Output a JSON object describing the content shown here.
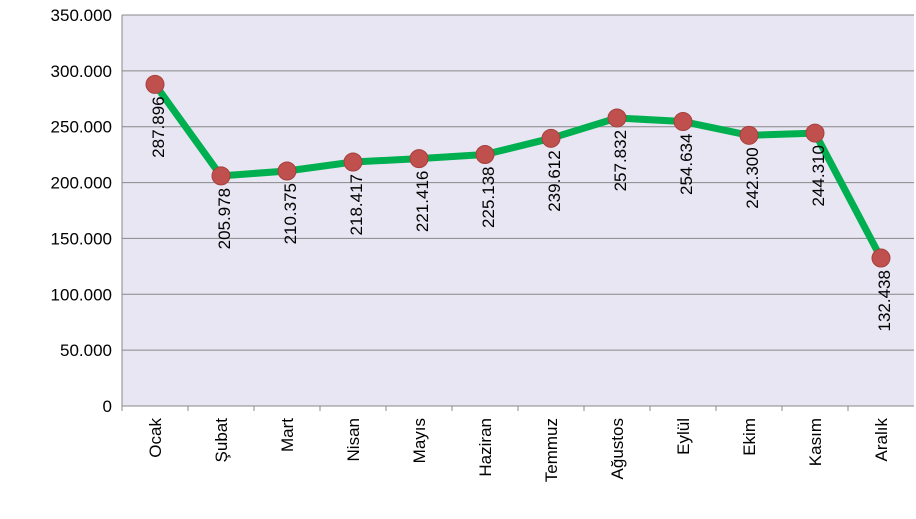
{
  "chart_data": {
    "type": "line",
    "categories": [
      "Ocak",
      "Şubat",
      "Mart",
      "Nisan",
      "Mayıs",
      "Haziran",
      "Temmuz",
      "Ağustos",
      "Eylül",
      "Ekim",
      "Kasım",
      "Aralık"
    ],
    "series": [
      {
        "color": "#00b050",
        "marker_color": "#c0504d",
        "values": [
          287896,
          205978,
          210375,
          218417,
          221416,
          225138,
          239612,
          257832,
          254634,
          242300,
          244310,
          132438
        ],
        "value_labels": [
          "287.896",
          "205.978",
          "210.375",
          "218.417",
          "221.416",
          "225.138",
          "239.612",
          "257.832",
          "254.634",
          "242.300",
          "244.310",
          "132.438"
        ]
      }
    ],
    "ylim": [
      0,
      350000
    ],
    "yticks": [
      {
        "value": 0,
        "label": "0"
      },
      {
        "value": 50000,
        "label": "50.000"
      },
      {
        "value": 100000,
        "label": "100.000"
      },
      {
        "value": 150000,
        "label": "150.000"
      },
      {
        "value": 200000,
        "label": "200.000"
      },
      {
        "value": 250000,
        "label": "250.000"
      },
      {
        "value": 300000,
        "label": "300.000"
      },
      {
        "value": 350000,
        "label": "350.000"
      }
    ],
    "grid": true,
    "plot_background": "#e8e6f2"
  }
}
